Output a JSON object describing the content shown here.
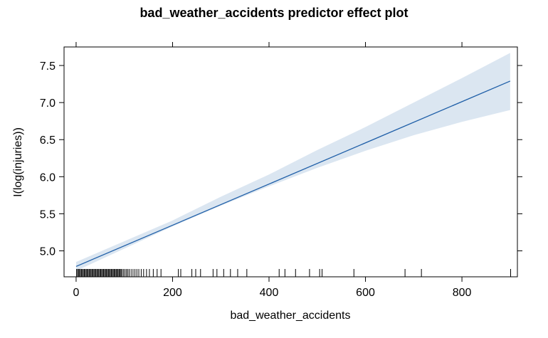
{
  "chart_data": {
    "type": "line",
    "title": "bad_weather_accidents predictor effect plot",
    "xlabel": "bad_weather_accidents",
    "ylabel": "I(log(injuries))",
    "xlim": [
      -25,
      915
    ],
    "ylim": [
      4.65,
      7.75
    ],
    "x_ticks": [
      0,
      200,
      400,
      600,
      800
    ],
    "y_ticks": [
      5.0,
      5.5,
      6.0,
      6.5,
      7.0,
      7.5
    ],
    "x_tick_labels": [
      "0",
      "200",
      "400",
      "600",
      "800"
    ],
    "y_tick_labels": [
      "5.0",
      "5.5",
      "6.0",
      "6.5",
      "7.0",
      "7.5"
    ],
    "grid": false,
    "series": [
      {
        "x": [
          0,
          900
        ],
        "y": [
          4.79,
          7.29
        ],
        "color": "#1f5fa8"
      }
    ],
    "confidence_band": {
      "x": [
        0,
        100,
        200,
        300,
        400,
        500,
        600,
        700,
        800,
        900
      ],
      "lower": [
        4.73,
        5.03,
        5.33,
        5.61,
        5.87,
        6.12,
        6.35,
        6.56,
        6.74,
        6.9
      ],
      "upper": [
        4.85,
        5.13,
        5.41,
        5.73,
        6.03,
        6.36,
        6.67,
        7.0,
        7.33,
        7.67
      ],
      "color": "#dbe6f1"
    },
    "rug_x": [
      1,
      3,
      5,
      7,
      9,
      11,
      13,
      15,
      17,
      19,
      21,
      23,
      25,
      27,
      29,
      31,
      33,
      35,
      37,
      39,
      41,
      43,
      45,
      47,
      49,
      51,
      53,
      55,
      57,
      59,
      61,
      63,
      65,
      67,
      69,
      71,
      73,
      75,
      77,
      79,
      81,
      83,
      85,
      87,
      89,
      91,
      93,
      95,
      98,
      101,
      104,
      107,
      110,
      114,
      118,
      122,
      126,
      130,
      135,
      140,
      146,
      152,
      160,
      168,
      176,
      212,
      217,
      240,
      248,
      258,
      284,
      292,
      306,
      320,
      335,
      354,
      421,
      433,
      455,
      484,
      505,
      510,
      576,
      682,
      716,
      901
    ]
  }
}
